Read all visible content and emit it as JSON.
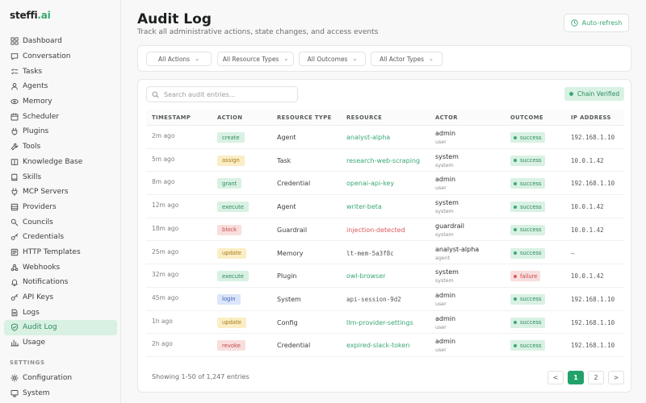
{
  "brand": {
    "name_main": "steffi",
    "name_suffix": ".ai"
  },
  "sidebar": {
    "items": [
      {
        "label": "Dashboard",
        "icon": "dashboard-icon"
      },
      {
        "label": "Conversation",
        "icon": "chat-icon"
      },
      {
        "label": "Tasks",
        "icon": "tasks-icon"
      },
      {
        "label": "Agents",
        "icon": "agents-icon"
      },
      {
        "label": "Memory",
        "icon": "memory-icon"
      },
      {
        "label": "Scheduler",
        "icon": "scheduler-icon"
      },
      {
        "label": "Plugins",
        "icon": "plugins-icon"
      },
      {
        "label": "Tools",
        "icon": "tools-icon"
      },
      {
        "label": "Knowledge Base",
        "icon": "book-icon"
      },
      {
        "label": "Skills",
        "icon": "skills-icon"
      },
      {
        "label": "MCP Servers",
        "icon": "plug-icon"
      },
      {
        "label": "Providers",
        "icon": "providers-icon"
      },
      {
        "label": "Councils",
        "icon": "councils-icon"
      },
      {
        "label": "Credentials",
        "icon": "key-icon"
      },
      {
        "label": "HTTP Templates",
        "icon": "template-icon"
      },
      {
        "label": "Webhooks",
        "icon": "webhook-icon"
      },
      {
        "label": "Notifications",
        "icon": "bell-icon"
      },
      {
        "label": "API Keys",
        "icon": "key-icon"
      },
      {
        "label": "Logs",
        "icon": "logs-icon"
      },
      {
        "label": "Audit Log",
        "icon": "shield-icon",
        "active": true
      },
      {
        "label": "Usage",
        "icon": "bar-chart-icon"
      }
    ],
    "settings_label": "SETTINGS",
    "settings_items": [
      {
        "label": "Configuration",
        "icon": "gear-icon"
      },
      {
        "label": "System",
        "icon": "monitor-icon"
      }
    ]
  },
  "header": {
    "title": "Audit Log",
    "subtitle": "Track all administrative actions, state changes, and access events",
    "auto_refresh_label": "Auto-refresh"
  },
  "filters": {
    "actions": "All Actions",
    "resource_types": "All Resource Types",
    "outcomes": "All Outcomes",
    "actor_types": "All Actor Types"
  },
  "search": {
    "placeholder": "Search audit entries..."
  },
  "chain_badge": "Chain Verified",
  "table": {
    "columns": [
      "TIMESTAMP",
      "ACTION",
      "RESOURCE TYPE",
      "RESOURCE",
      "ACTOR",
      "OUTCOME",
      "IP ADDRESS"
    ],
    "rows": [
      {
        "ts": "2m ago",
        "action": "create",
        "action_kind": "create",
        "rtype": "Agent",
        "resource": "analyst-alpha",
        "res_style": "link",
        "actor": "admin",
        "actor_type": "user",
        "outcome": "success",
        "ip": "192.168.1.10"
      },
      {
        "ts": "5m ago",
        "action": "assign",
        "action_kind": "assign",
        "rtype": "Task",
        "resource": "research-web-scraping",
        "res_style": "link",
        "actor": "system",
        "actor_type": "system",
        "outcome": "success",
        "ip": "10.0.1.42"
      },
      {
        "ts": "8m ago",
        "action": "grant",
        "action_kind": "grant",
        "rtype": "Credential",
        "resource": "openai-api-key",
        "res_style": "link",
        "actor": "admin",
        "actor_type": "user",
        "outcome": "success",
        "ip": "192.168.1.10"
      },
      {
        "ts": "12m ago",
        "action": "execute",
        "action_kind": "execute",
        "rtype": "Agent",
        "resource": "writer-beta",
        "res_style": "link",
        "actor": "system",
        "actor_type": "system",
        "outcome": "success",
        "ip": "10.0.1.42"
      },
      {
        "ts": "18m ago",
        "action": "block",
        "action_kind": "block",
        "rtype": "Guardrail",
        "resource": "injection-detected",
        "res_style": "danger",
        "actor": "guardrail",
        "actor_type": "system",
        "outcome": "success",
        "ip": "10.0.1.42"
      },
      {
        "ts": "25m ago",
        "action": "update",
        "action_kind": "update",
        "rtype": "Memory",
        "resource": "lt-mem-5a3f8c",
        "res_style": "mono",
        "actor": "analyst-alpha",
        "actor_type": "agent",
        "outcome": "success",
        "ip": "—"
      },
      {
        "ts": "32m ago",
        "action": "execute",
        "action_kind": "execute",
        "rtype": "Plugin",
        "resource": "owl-browser",
        "res_style": "link",
        "actor": "system",
        "actor_type": "system",
        "outcome": "failure",
        "ip": "10.0.1.42"
      },
      {
        "ts": "45m ago",
        "action": "login",
        "action_kind": "login",
        "rtype": "System",
        "resource": "api-session-9d2",
        "res_style": "mono",
        "actor": "admin",
        "actor_type": "user",
        "outcome": "success",
        "ip": "192.168.1.10"
      },
      {
        "ts": "1h ago",
        "action": "update",
        "action_kind": "update",
        "rtype": "Config",
        "resource": "llm-provider-settings",
        "res_style": "link",
        "actor": "admin",
        "actor_type": "user",
        "outcome": "success",
        "ip": "192.168.1.10"
      },
      {
        "ts": "2h ago",
        "action": "revoke",
        "action_kind": "revoke",
        "rtype": "Credential",
        "resource": "expired-slack-token",
        "res_style": "link",
        "actor": "admin",
        "actor_type": "user",
        "outcome": "success",
        "ip": "192.168.1.10"
      }
    ]
  },
  "footer": {
    "showing": "Showing 1-50 of 1,247 entries",
    "prev": "<",
    "page1": "1",
    "page2": "2",
    "next": ">"
  },
  "colors": {
    "accent": "#3aa873",
    "active_bg": "#d8f1e3",
    "danger": "#d95a5a"
  }
}
